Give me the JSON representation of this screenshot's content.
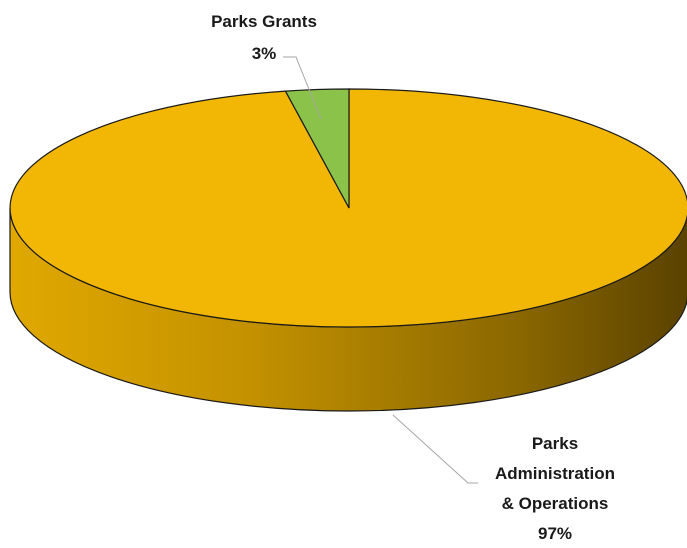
{
  "chart_data": {
    "type": "pie",
    "style": "3d",
    "slices": [
      {
        "label_lines": [
          "Parks Grants"
        ],
        "percent_label": "3%",
        "value": 3,
        "color": "#8bc34a"
      },
      {
        "label_lines": [
          "Parks",
          "Administration",
          "& Operations"
        ],
        "percent_label": "97%",
        "value": 97,
        "color": "#f2b705"
      }
    ],
    "title": "",
    "legend": "none",
    "data_labels": "outside with leader lines"
  }
}
